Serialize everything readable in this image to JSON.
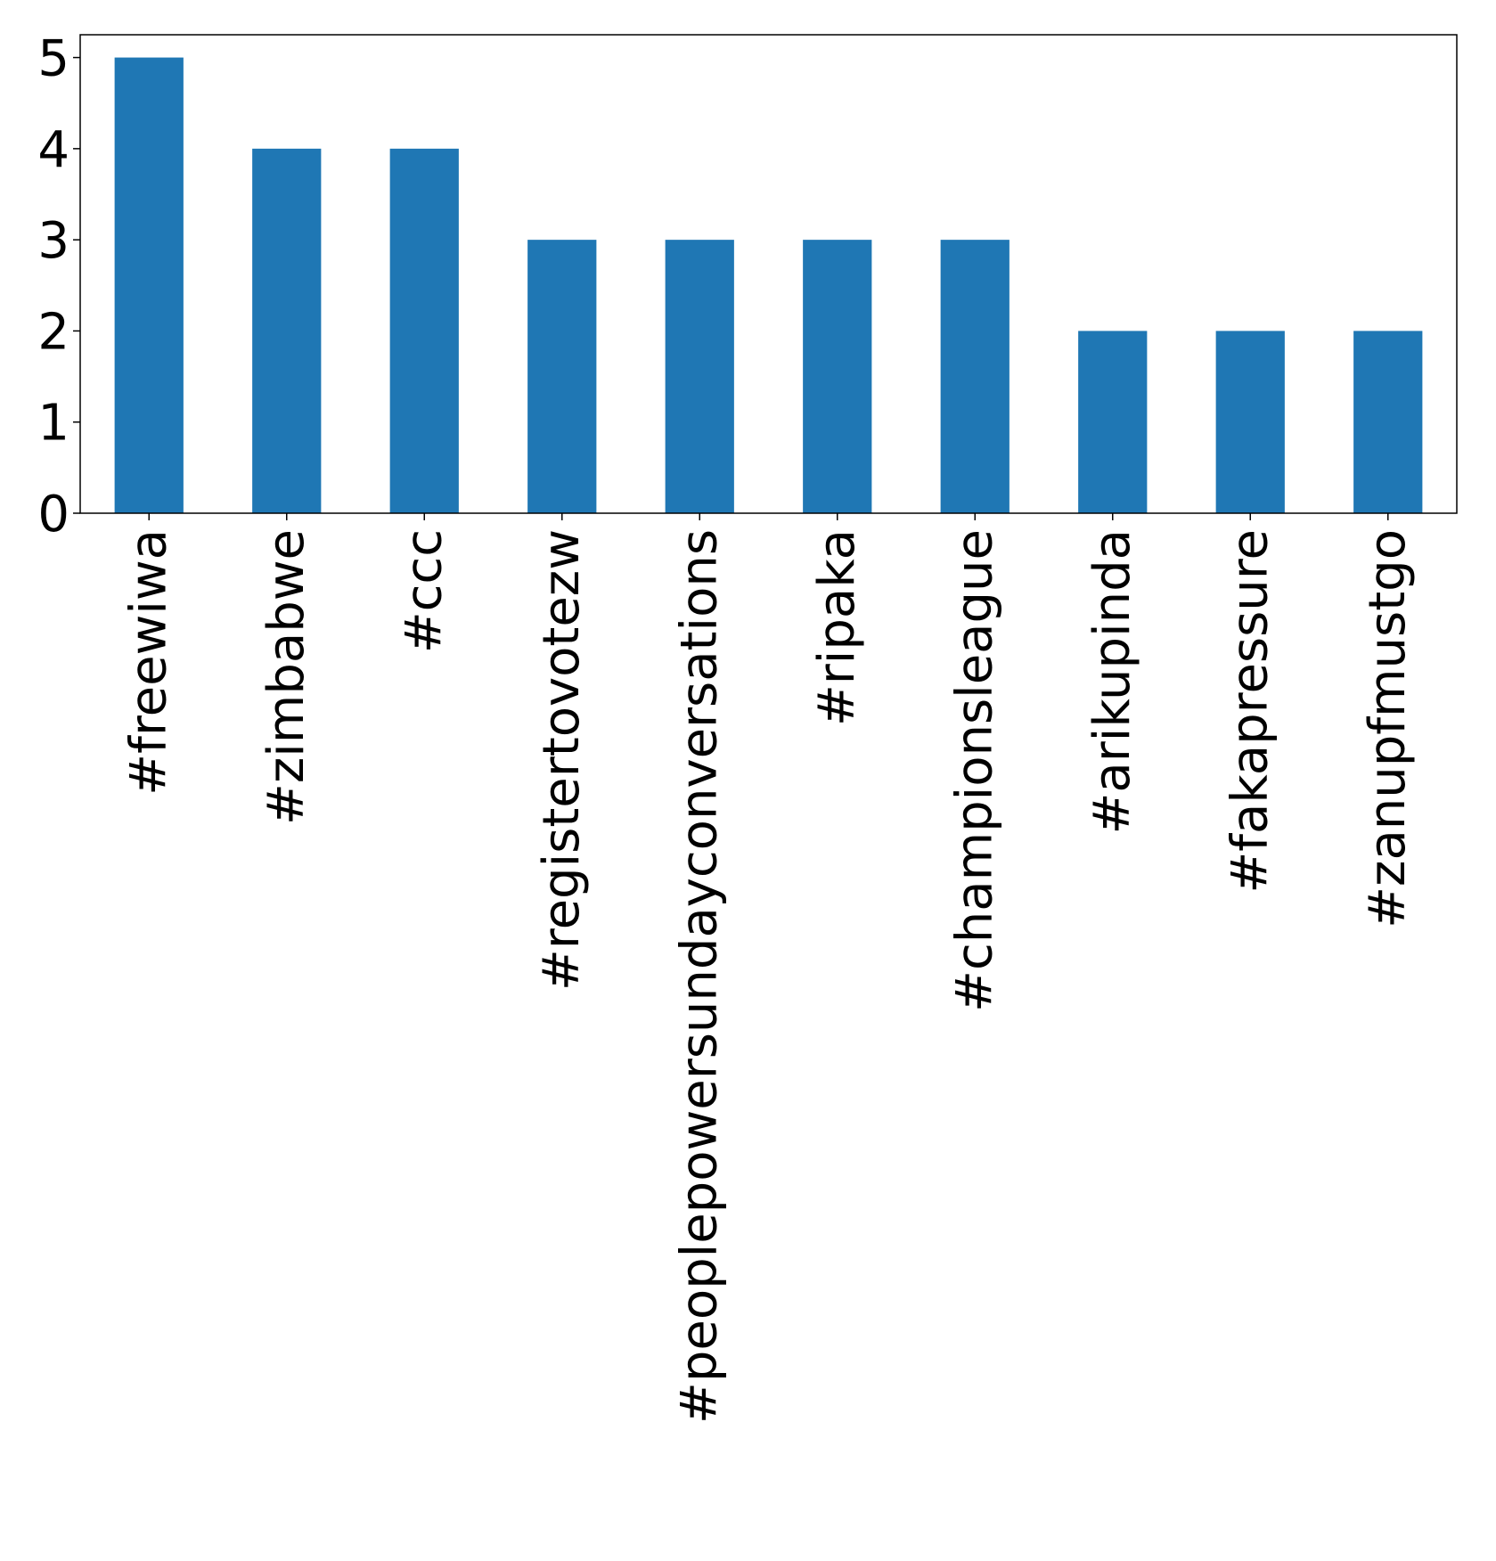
{
  "chart_data": {
    "type": "bar",
    "categories": [
      "#freewiwa",
      "#zimbabwe",
      "#ccc",
      "#registertovotezw",
      "#peoplepowersundayconversations",
      "#ripaka",
      "#championsleague",
      "#arikupinda",
      "#fakapressure",
      "#zanupfmustgo"
    ],
    "values": [
      5,
      4,
      4,
      3,
      3,
      3,
      3,
      2,
      2,
      2
    ],
    "title": "",
    "xlabel": "",
    "ylabel": "",
    "ylim": [
      0,
      5.25
    ],
    "yticks": [
      0,
      1,
      2,
      3,
      4,
      5
    ],
    "grid": false,
    "bar_color": "#1f77b4"
  }
}
